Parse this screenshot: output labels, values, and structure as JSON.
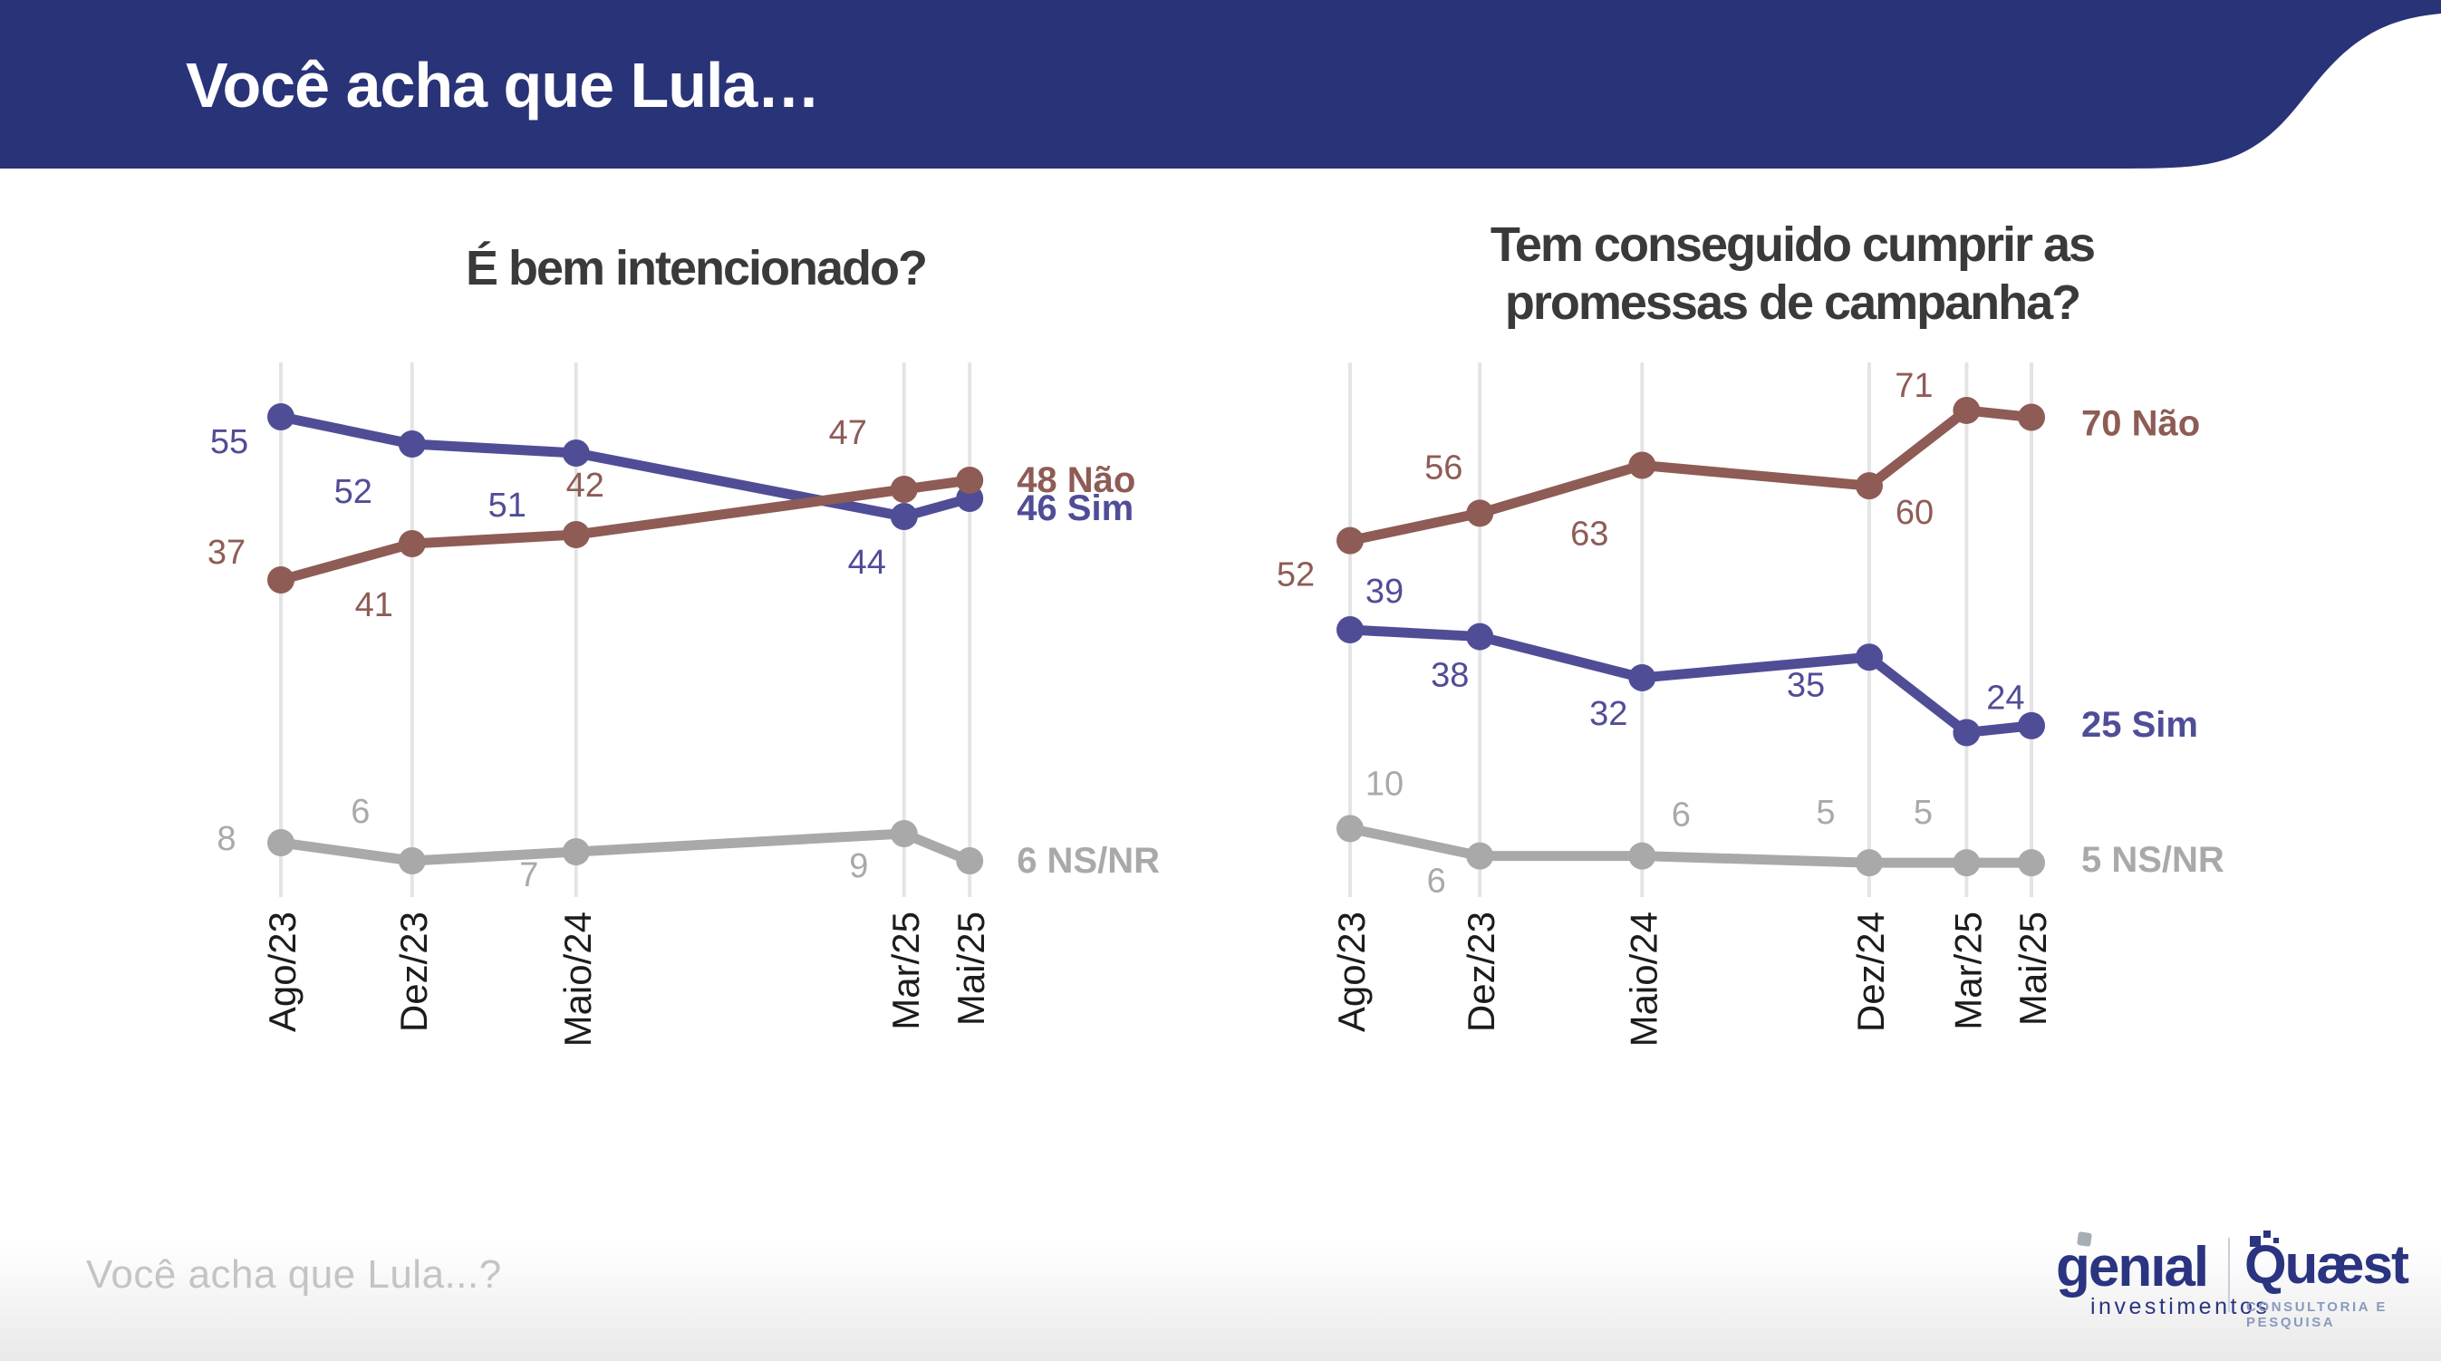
{
  "banner": {
    "title": "Você acha que Lula…"
  },
  "footer": {
    "question": "Você acha que Lula...?"
  },
  "logos": {
    "genial": {
      "name": "genıal",
      "subtitle": "investimentos"
    },
    "quaest": {
      "name": "Quæst",
      "subtitle": "CONSULTORIA E PESQUISA"
    }
  },
  "colors": {
    "banner_bg": "#293377",
    "title_text": "#3A3A3A",
    "tick_text": "#1C1C1C",
    "grid": "#E4E4E4",
    "sim": "#504D97",
    "nao": "#8E5C55",
    "nsnr": "#A9A9A9",
    "footer_text": "#C4C4C4",
    "logo_navy": "#2A3480"
  },
  "chart_data": [
    {
      "type": "line",
      "title": "É bem intencionado?",
      "title_lines": [
        "É bem intencionado?"
      ],
      "categories": [
        "Ago/23",
        "Dez/23",
        "Maio/24",
        "Mar/25",
        "Mai/25"
      ],
      "month_index": [
        0,
        4,
        9,
        19,
        21
      ],
      "ylim": [
        2,
        61
      ],
      "grid": true,
      "legend_position": "right-end-labels",
      "series": [
        {
          "name": "Sim",
          "color": "#504D97",
          "values": [
            55,
            52,
            51,
            44,
            46
          ],
          "end_label": "46 Sim"
        },
        {
          "name": "Não",
          "color": "#8E5C55",
          "values": [
            37,
            41,
            42,
            47,
            48
          ],
          "end_label": "48 Não"
        },
        {
          "name": "NS/NR",
          "color": "#A9A9A9",
          "values": [
            8,
            6,
            7,
            9,
            6
          ],
          "end_label": "6 NS/NR"
        }
      ]
    },
    {
      "type": "line",
      "title": "Tem conseguido cumprir as promessas de campanha?",
      "title_lines": [
        "Tem conseguido cumprir as",
        "promessas de campanha?"
      ],
      "categories": [
        "Ago/23",
        "Dez/23",
        "Maio/24",
        "Dez/24",
        "Mar/25",
        "Mai/25"
      ],
      "month_index": [
        0,
        4,
        9,
        16,
        19,
        21
      ],
      "ylim": [
        0,
        78
      ],
      "grid": true,
      "legend_position": "right-end-labels",
      "series": [
        {
          "name": "Não",
          "color": "#8E5C55",
          "values": [
            52,
            56,
            63,
            60,
            71,
            70
          ],
          "end_label": "70 Não"
        },
        {
          "name": "Sim",
          "color": "#504D97",
          "values": [
            39,
            38,
            32,
            35,
            24,
            25
          ],
          "end_label": "25 Sim"
        },
        {
          "name": "NS/NR",
          "color": "#A9A9A9",
          "values": [
            10,
            6,
            6,
            5,
            5,
            5
          ],
          "end_label": "5 NS/NR"
        }
      ]
    }
  ]
}
